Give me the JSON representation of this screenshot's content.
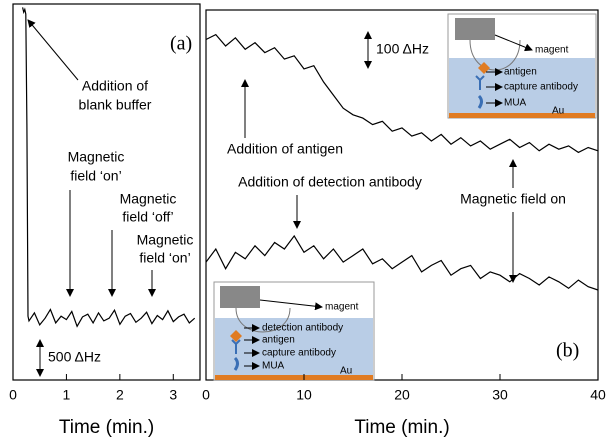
{
  "chart_data": [
    {
      "type": "line",
      "panel_label": "(a)",
      "x_label": "Time (min.)",
      "scale_bar": "500 ΔHz",
      "annotations": [
        [
          "Addition of",
          "blank buffer"
        ],
        [
          "Magnetic",
          "field ‘on’"
        ],
        [
          "Magnetic",
          "field ‘off’"
        ],
        [
          "Magnetic",
          "field ‘on’"
        ]
      ],
      "x": [
        0.18,
        0.2,
        0.22,
        0.24,
        0.26,
        0.28,
        0.3,
        0.4,
        0.5,
        0.6,
        0.7,
        0.8,
        0.9,
        1.0,
        1.1,
        1.2,
        1.3,
        1.4,
        1.5,
        1.6,
        1.7,
        1.8,
        1.9,
        2.0,
        2.1,
        2.2,
        2.3,
        2.4,
        2.5,
        2.6,
        2.7,
        2.8,
        2.9,
        3.0,
        3.1,
        3.2,
        3.3,
        3.4
      ],
      "series": [
        {
          "color": "#000000",
          "values": [
            250,
            180,
            220,
            150,
            -1500,
            -4350,
            -4420,
            -4300,
            -4480,
            -4380,
            -4250,
            -4450,
            -4350,
            -4400,
            -4280,
            -4500,
            -4360,
            -4320,
            -4450,
            -4300,
            -4420,
            -4380,
            -4260,
            -4470,
            -4350,
            -4310,
            -4440,
            -4380,
            -4290,
            -4460,
            -4340,
            -4400,
            -4270,
            -4430,
            -4360,
            -4320,
            -4450,
            -4380
          ]
        }
      ],
      "xlim": [
        0,
        3.5
      ],
      "xticks": [
        0,
        1,
        2,
        3
      ],
      "ylim": [
        -5300,
        300
      ]
    },
    {
      "type": "line",
      "panel_label": "(b)",
      "x_label": "Time (min.)",
      "scale_bar": "100 ΔHz",
      "annotations": [
        [
          "Addition of antigen"
        ],
        [
          "Addition of detection antibody"
        ],
        [
          "Magnetic field on"
        ]
      ],
      "insets": [
        [
          "magent",
          "antigen",
          "capture antibody",
          "MUA",
          "Au"
        ],
        [
          "magent",
          "detection antibody",
          "antigen",
          "capture antibody",
          "MUA",
          "Au"
        ]
      ],
      "x": [
        0,
        1,
        2,
        3,
        4,
        5,
        6,
        7,
        8,
        9,
        10,
        11,
        12,
        13,
        14,
        15,
        16,
        17,
        18,
        19,
        20,
        21,
        22,
        23,
        24,
        25,
        26,
        27,
        28,
        29,
        30,
        31,
        32,
        33,
        34,
        35,
        36,
        37,
        38,
        39,
        40
      ],
      "series": [
        {
          "color": "#000000",
          "values": [
            -60,
            -45,
            -80,
            -55,
            -90,
            -70,
            -100,
            -85,
            -120,
            -110,
            -150,
            -140,
            -190,
            -230,
            -270,
            -290,
            -300,
            -320,
            -310,
            -340,
            -330,
            -355,
            -345,
            -370,
            -350,
            -380,
            -360,
            -385,
            -370,
            -395,
            -380,
            -365,
            -390,
            -375,
            -400,
            -380,
            -395,
            -385,
            -405,
            -390,
            -400
          ]
        },
        {
          "color": "#000000",
          "values": [
            -740,
            -700,
            -760,
            -710,
            -730,
            -690,
            -720,
            -680,
            -700,
            -660,
            -710,
            -690,
            -730,
            -700,
            -740,
            -720,
            -700,
            -745,
            -730,
            -760,
            -740,
            -720,
            -770,
            -750,
            -735,
            -780,
            -760,
            -750,
            -790,
            -770,
            -780,
            -800,
            -775,
            -790,
            -810,
            -785,
            -800,
            -820,
            -795,
            -815,
            -825
          ]
        }
      ],
      "xlim": [
        0,
        40
      ],
      "xticks": [
        0,
        10,
        20,
        30,
        40
      ],
      "ylim": [
        -1100,
        30
      ]
    }
  ]
}
